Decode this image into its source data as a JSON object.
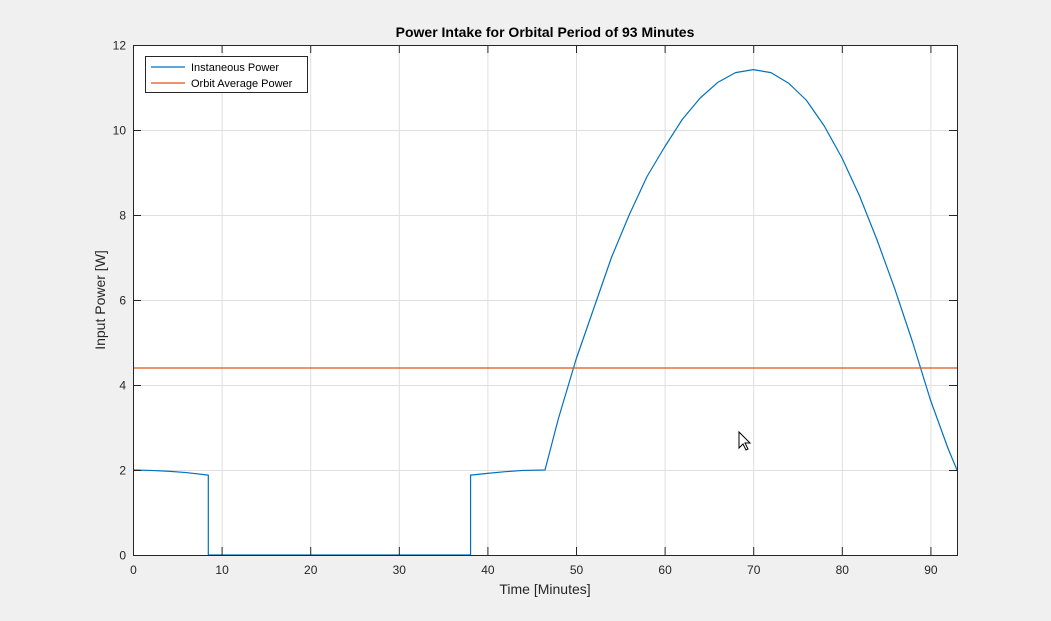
{
  "chart_data": {
    "type": "line",
    "title": "Power Intake for Orbital Period of 93 Minutes",
    "xlabel": "Time [Minutes]",
    "ylabel": "Input Power [W]",
    "xlim": [
      0,
      93
    ],
    "ylim": [
      0,
      12
    ],
    "xticks": [
      0,
      10,
      20,
      30,
      40,
      50,
      60,
      70,
      80,
      90
    ],
    "yticks": [
      0,
      2,
      4,
      6,
      8,
      10,
      12
    ],
    "grid": true,
    "legend_position": "top-left",
    "series": [
      {
        "name": "Instaneous Power",
        "color": "#0072BD",
        "x": [
          0,
          2,
          4,
          6,
          8.5,
          8.5,
          38.1,
          38.1,
          40,
          42,
          44,
          46.5,
          48,
          50,
          52,
          54,
          56,
          58,
          60,
          62,
          64,
          66,
          68,
          70,
          72,
          74,
          76,
          78,
          80,
          82,
          84,
          86,
          88,
          90,
          92,
          93
        ],
        "y": [
          2.0,
          1.99,
          1.97,
          1.94,
          1.88,
          0,
          0,
          1.88,
          1.92,
          1.96,
          1.99,
          2.0,
          3.2,
          4.6,
          5.8,
          7.0,
          8.0,
          8.9,
          9.6,
          10.25,
          10.75,
          11.12,
          11.35,
          11.42,
          11.35,
          11.1,
          10.7,
          10.1,
          9.35,
          8.45,
          7.4,
          6.25,
          5.0,
          3.65,
          2.5,
          2.0
        ]
      },
      {
        "name": "Orbit Average Power",
        "color": "#D95319",
        "x": [
          0,
          93
        ],
        "y": [
          4.4,
          4.4
        ]
      }
    ]
  }
}
